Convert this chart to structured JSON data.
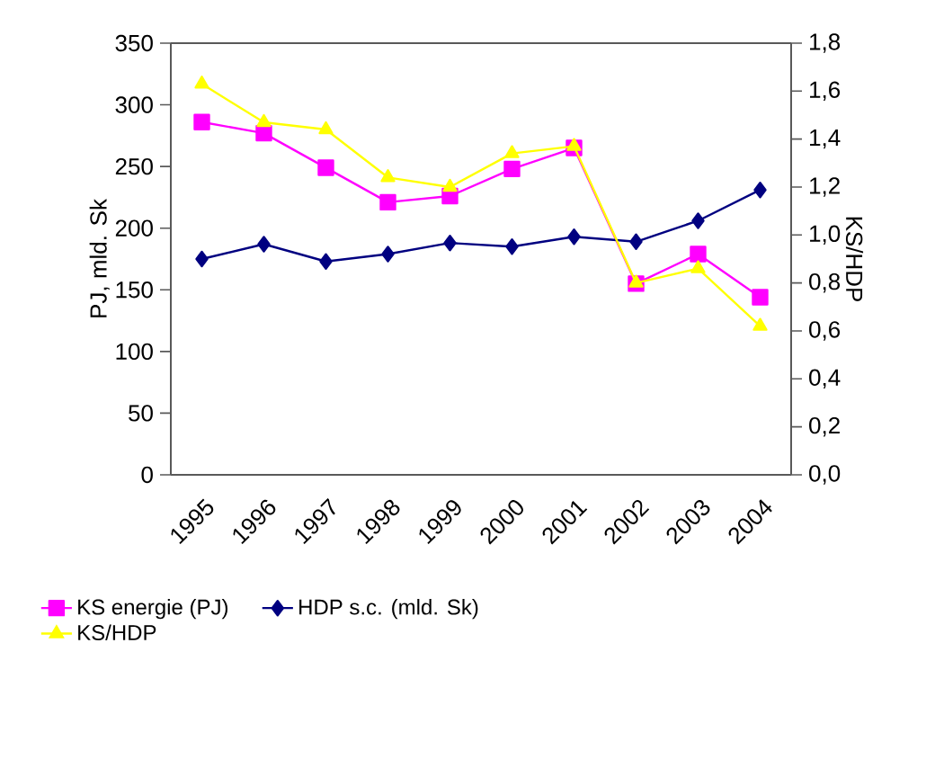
{
  "chart_data": {
    "type": "line",
    "ylabel": "PJ, mld. Sk",
    "y2label": "KS/HDP",
    "categories": [
      "1995",
      "1996",
      "1997",
      "1998",
      "1999",
      "2000",
      "2001",
      "2002",
      "2003",
      "2004"
    ],
    "series": [
      {
        "name": "KS energie (PJ)",
        "color": "#ff00ff",
        "marker": "square",
        "values": [
          286,
          277,
          249,
          221,
          226,
          248,
          265,
          155,
          179,
          144
        ]
      },
      {
        "name": "HDP s.c. (mld. Sk)",
        "color": "#000080",
        "marker": "diamond",
        "values": [
          175,
          187,
          173,
          179,
          188,
          185,
          193,
          189,
          206,
          231
        ]
      },
      {
        "name": "KS/HDP",
        "color": "#ffff00",
        "marker": "triangle",
        "axis": "y2",
        "values": [
          1.63,
          1.47,
          1.44,
          1.24,
          1.2,
          1.34,
          1.37,
          0.8,
          0.86,
          0.62
        ]
      }
    ],
    "ylim": [
      0,
      350
    ],
    "yticks": [
      0,
      50,
      100,
      150,
      200,
      250,
      300,
      350
    ],
    "y2lim": [
      0,
      1.8
    ],
    "y2ticks": [
      {
        "value": 0,
        "label": "0,0"
      },
      {
        "value": 0.2,
        "label": "0,2"
      },
      {
        "value": 0.4,
        "label": "0,4"
      },
      {
        "value": 0.6,
        "label": "0,6"
      },
      {
        "value": 0.8,
        "label": "0,8"
      },
      {
        "value": 1.0,
        "label": "1,0"
      },
      {
        "value": 1.2,
        "label": "1,2"
      },
      {
        "value": 1.4,
        "label": "1,4"
      },
      {
        "value": 1.6,
        "label": "1,6"
      },
      {
        "value": 1.8,
        "label": "1,8"
      }
    ],
    "grid": false,
    "legend": "bottom",
    "line_style": "solid"
  }
}
